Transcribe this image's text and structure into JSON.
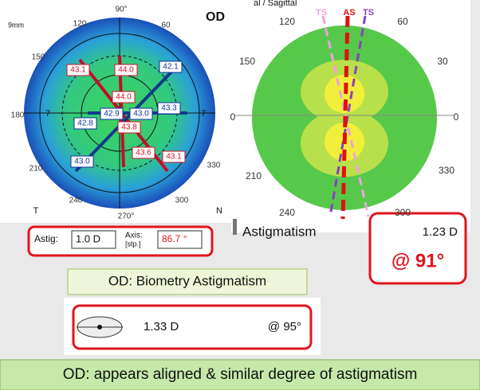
{
  "left_map": {
    "size_label": "9mm",
    "eye": "OD",
    "degree_labels": [
      "90°",
      "120",
      "60",
      "150",
      "180",
      "210",
      "240",
      "270°",
      "300",
      "330"
    ],
    "ring_labels": [
      "7",
      "7"
    ],
    "corner_labels": [
      "T",
      "N"
    ],
    "readings": [
      "43.1",
      "44.0",
      "42.1",
      "44.0",
      "42.9",
      "43.0",
      "43.3",
      "42.8",
      "43.8",
      "43.6",
      "43.1",
      "43.0"
    ]
  },
  "astig_box": {
    "astig_label": "Astig:",
    "astig_value": "1.0 D",
    "axis_label": "Axis:",
    "axis_sub": "[stp.]",
    "axis_value": "86.7 °"
  },
  "right_map": {
    "header": "al / Sagittal",
    "degree_labels": [
      "120",
      "60",
      "150",
      "30",
      "0",
      "0",
      "210",
      "330",
      "240",
      "300"
    ],
    "meridian_labels": [
      "TS",
      "AS",
      "TS"
    ],
    "title": "Astigmatism",
    "magnitude": "1.23 D",
    "axis": "@  91°"
  },
  "biometry": {
    "title": "OD: Biometry Astigmatism",
    "magnitude": "1.33 D",
    "axis": "@ 95°"
  },
  "conclusion": "OD:  appears aligned & similar degree of astigmatism"
}
